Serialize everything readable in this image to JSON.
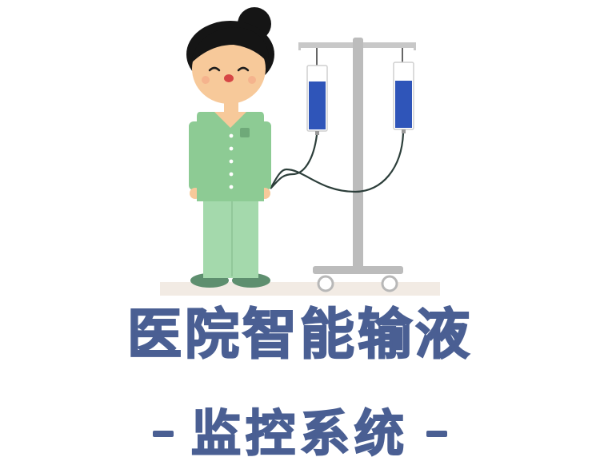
{
  "title": "医院智能输液",
  "subtitle": "监控系统",
  "colors": {
    "title": "#4a5f93",
    "scrubs": "#8dcb94",
    "pants": "#a4d9ac",
    "shoes": "#5e8f6f",
    "skin": "#f7c99a",
    "hair": "#151515",
    "headband": "#3a68c8",
    "iv_bag_fluid": "#2f55b9",
    "iv_pole": "#bcbcbc",
    "floor": "#f2ebe4"
  },
  "icons": {
    "person": "nurse-figure-icon",
    "iv_stand": "iv-drip-stand-icon"
  }
}
